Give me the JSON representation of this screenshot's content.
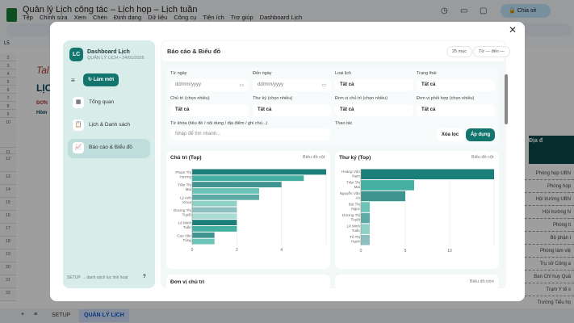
{
  "app": {
    "title": "Quản lý Lịch công tác – Lịch họp – Lịch tuần",
    "menu": [
      "Tệp",
      "Chỉnh sửa",
      "Xem",
      "Chèn",
      "Định dạng",
      "Dữ liệu",
      "Công cụ",
      "Tiện ích",
      "Trợ giúp",
      "Dashboard Lịch"
    ],
    "share": "Chia sẻ",
    "namebox": "L5"
  },
  "sheet": {
    "rows": [
      "2",
      "3",
      "4",
      "5",
      "6",
      "7",
      "8",
      "9",
      "10",
      "11",
      "12",
      "13",
      "14",
      "15",
      "16",
      "17",
      "18",
      "19",
      "20",
      "21",
      "22"
    ],
    "col": "A",
    "header": "Địa đ",
    "right_cells": [
      "Phòng họp UBN",
      "Phòng họp",
      "Hội trường UBN",
      "Hội trường N",
      "Phòng ti",
      "Bộ phận l",
      "Phòng làm việ",
      "Trụ sở Công a",
      "Ban Chỉ huy Quâ",
      "Trạm Y tế x",
      "Trường Tiểu họ"
    ],
    "left_text": [
      "Tal",
      "LỊC",
      "ĐƠN",
      "Hôm"
    ],
    "tabs": [
      "SETUP",
      "QUẢN LÝ LỊCH"
    ]
  },
  "sidebar": {
    "logo": "LC",
    "title": "Dashboard Lịch",
    "subtitle": "QUẢN LÝ LỊCH • 24/01/2026",
    "refresh": "↻ Làm mới",
    "items": [
      {
        "label": "Tổng quan",
        "icon": "calendar-icon"
      },
      {
        "label": "Lịch & Danh sách",
        "icon": "clipboard-icon"
      },
      {
        "label": "Báo cáo & Biểu đồ",
        "icon": "chart-icon",
        "active": true
      }
    ],
    "footer": "SETUP → danh sách lọc linh hoạt",
    "help": "?"
  },
  "main": {
    "title": "Báo cáo & Biểu đồ",
    "count": "25 mục",
    "range": "Từ — đến —",
    "filters": {
      "from_label": "Từ ngày",
      "from_ph": "dd/mm/yyyy",
      "to_label": "Đến ngày",
      "to_ph": "dd/mm/yyyy",
      "type_label": "Loại lịch",
      "type_val": "Tất cả",
      "status_label": "Trạng thái",
      "status_val": "Tất cả",
      "chair_label": "Chủ trì (chọn nhiều)",
      "chair_val": "Tất cả",
      "sec_label": "Thư ký (chọn nhiều)",
      "sec_val": "Tất cả",
      "unit_label": "Đơn vị chủ trì (chọn nhiều)",
      "unit_val": "Tất cả",
      "co_label": "Đơn vị phối hợp (chọn nhiều)",
      "co_val": "Tất cả",
      "kw_label": "Từ khóa (tiêu đề / nội dung / địa điểm / ghi chú...)",
      "kw_ph": "Nhập để tìm nhanh...",
      "actions_label": "Thao tác",
      "clear": "Xóa lọc",
      "apply": "Áp dụng"
    },
    "next_card_title": "Đơn vị chủ trì",
    "next_card_right": "Biểu đồ tròn"
  },
  "chart_data": [
    {
      "type": "bar",
      "orientation": "horizontal",
      "title": "Chủ trì (Top)",
      "tag": "Biểu đồ cột",
      "categories": [
        "Phạm Thị Hương",
        "",
        "Trần Thị Mai",
        "",
        "Lý Anh Khoa",
        "",
        "Dương Thị Tuyết",
        "",
        "Lê Minh Tuấn",
        "",
        "Cao Văn Tùng",
        ""
      ],
      "values": [
        6,
        5,
        4,
        3,
        3,
        2,
        2,
        2,
        2,
        2,
        1,
        1
      ],
      "xlim": [
        0,
        6
      ],
      "xticks": [
        0,
        2,
        4
      ],
      "grid": true
    },
    {
      "type": "bar",
      "orientation": "horizontal",
      "title": "Thư ký (Top)",
      "tag": "Biểu đồ cột",
      "categories": [
        "Hoàng Văn Nam",
        "Trần Thị Mai",
        "Nguyễn Văn An",
        "Bùi Thị Ngọc",
        "Dương Thị Tuyết",
        "Lê Minh Tuấn",
        "Tô Thị Hạnh"
      ],
      "values": [
        15,
        6,
        5,
        1,
        1,
        1,
        1
      ],
      "xlim": [
        0,
        15
      ],
      "xticks": [
        0,
        5,
        10
      ],
      "grid": true
    }
  ],
  "colors": {
    "accent": "#13756e",
    "bars": [
      "#1b7f79",
      "#45b0a2",
      "#3f9490",
      "#6cc4b6",
      "#5eaaa5",
      "#8fd1c6",
      "#8dbfbf",
      "#a9ddd4"
    ]
  }
}
